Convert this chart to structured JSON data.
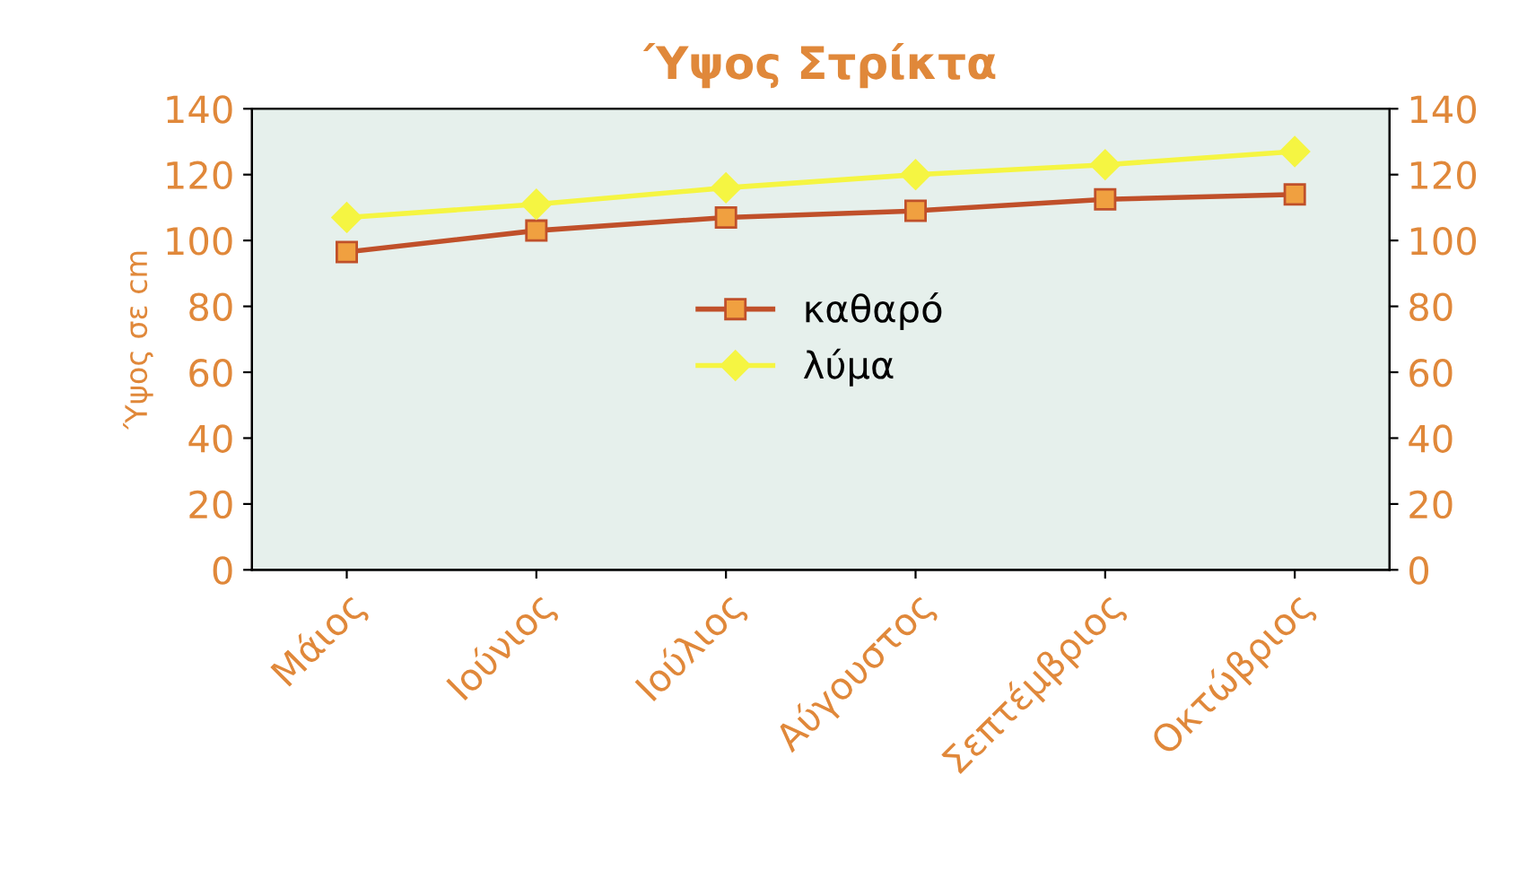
{
  "chart_data": {
    "type": "line",
    "title": "Ύψος Στρίκτα",
    "ylabel": "Ύψος σε cm",
    "categories": [
      "Μάιος",
      "Ιούνιος",
      "Ιούλιος",
      "Αύγουστος",
      "Σεπτέμβριος",
      "Οκτώβριος"
    ],
    "series": [
      {
        "name": "καθαρό",
        "color": "#c0502a",
        "marker": "square",
        "values": [
          96.5,
          103,
          107,
          109,
          112.5,
          114
        ]
      },
      {
        "name": "λύμα",
        "color": "#f5f542",
        "marker": "diamond",
        "values": [
          107,
          111,
          116,
          120,
          123,
          127
        ]
      }
    ],
    "ylim": [
      0,
      140
    ],
    "yticks": [
      0,
      20,
      40,
      60,
      80,
      100,
      120,
      140
    ],
    "y2lim": [
      0,
      140
    ],
    "y2ticks": [
      0,
      20,
      40,
      60,
      80,
      100,
      120,
      140
    ],
    "grid": false,
    "legend": "center"
  }
}
